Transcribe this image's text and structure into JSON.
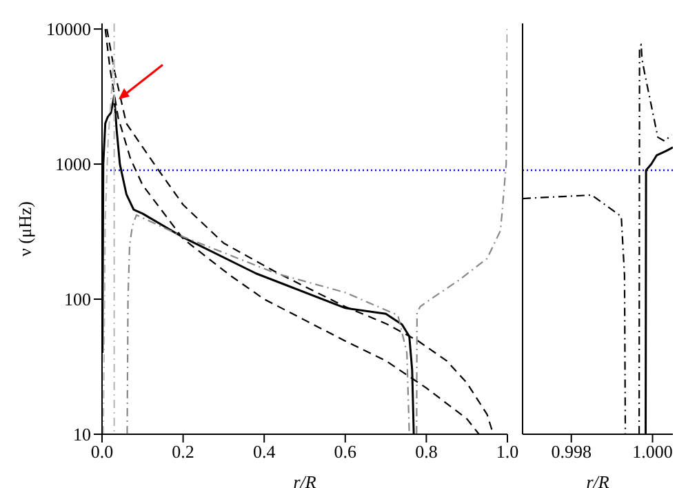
{
  "chart_data": [
    {
      "type": "line",
      "xlabel": "r/R",
      "ylabel": "ν (μHz)",
      "log": "y",
      "xlim": [
        0,
        1
      ],
      "xticks": [
        {
          "value": 0,
          "label": "0.0"
        },
        {
          "value": 0.2,
          "label": "0.2"
        },
        {
          "value": 0.4,
          "label": "0.4"
        },
        {
          "value": 0.6,
          "label": "0.6"
        },
        {
          "value": 0.8,
          "label": "0.8"
        },
        {
          "value": 1,
          "label": "1.0"
        }
      ],
      "ylim": [
        10,
        11000
      ],
      "yticks": [
        10,
        100,
        1000,
        10000
      ],
      "ref_lines": [
        {
          "axis": "y",
          "value": 900,
          "color": "#0000ff",
          "line_style": "dotted"
        }
      ],
      "series": [
        {
          "color": "#000000",
          "line_style": "solid",
          "x": [
            0.001,
            0.003,
            0.008,
            0.014,
            0.022,
            0.03,
            0.036,
            0.044,
            0.06,
            0.078,
            0.1,
            0.2,
            0.38,
            0.6,
            0.7,
            0.74,
            0.758,
            0.765,
            0.769
          ],
          "values": [
            40,
            1000,
            2000,
            2230,
            2400,
            3200,
            1800,
            1000,
            600,
            460,
            430,
            287,
            155,
            86,
            78,
            65,
            53,
            30,
            10
          ]
        },
        {
          "color": "#000000",
          "line_style": "dashed",
          "x": [
            0.008,
            0.02,
            0.04,
            0.07,
            0.1,
            0.2,
            0.316,
            0.4,
            0.5,
            0.6,
            0.7,
            0.8,
            0.9,
            0.93
          ],
          "values": [
            10000,
            5000,
            2200,
            1100,
            700,
            280,
            150,
            100,
            70,
            49,
            35,
            22,
            13,
            10
          ]
        },
        {
          "color": "#000000",
          "line_style": "dashed",
          "x": [
            0.012,
            0.03,
            0.06,
            0.129,
            0.2,
            0.3,
            0.43,
            0.6,
            0.7,
            0.78,
            0.85,
            0.9,
            0.95,
            0.965
          ],
          "values": [
            10000,
            5000,
            2000,
            1000,
            500,
            260,
            158,
            88,
            66,
            49,
            35,
            24,
            14,
            10
          ]
        },
        {
          "color": "#bbbbbb",
          "line_style": "dashdot",
          "x": [
            0.003,
            0.008,
            0.015,
            0.025,
            0.028,
            0.029,
            0.03,
            0.0301
          ],
          "values": [
            10,
            400,
            1500,
            4000,
            6000,
            null,
            11000,
            10
          ]
        },
        {
          "color": "#888888",
          "line_style": "dashdot",
          "x": [
            0.062,
            0.064,
            0.068,
            0.075,
            0.085,
            0.1,
            0.2,
            0.43,
            0.6,
            0.73,
            0.752,
            0.758,
            0.767,
            0.776,
            0.777,
            0.785,
            0.8,
            0.88,
            0.95,
            0.983,
            0.997,
            1.0
          ],
          "values": [
            10,
            100,
            250,
            350,
            420,
            400,
            290,
            155,
            112,
            76,
            40,
            10,
            null,
            10,
            80,
            88,
            95,
            138,
            200,
            322,
            1000,
            10000
          ]
        }
      ]
    },
    {
      "type": "line",
      "xlabel": "r/R",
      "log": "y",
      "tick_labels": "x",
      "xlim": [
        0.9968,
        1.0005
      ],
      "xticks": [
        {
          "value": 0.998,
          "label": "0.998"
        },
        {
          "value": 1.0,
          "label": "1.000"
        }
      ],
      "ylim": [
        10,
        11000
      ],
      "yticks": [
        10,
        100,
        1000,
        10000
      ],
      "ref_lines": [
        {
          "axis": "y",
          "value": 900,
          "color": "#0000ff",
          "line_style": "dotted"
        }
      ],
      "series": [
        {
          "color": "#000000",
          "line_style": "dashdot",
          "x": [
            0.9968,
            0.9985,
            0.99923,
            0.99931,
            0.99933
          ],
          "values": [
            556,
            590,
            410,
            150,
            10
          ]
        },
        {
          "color": "#000000",
          "line_style": "dashdot",
          "x": [
            0.99967,
            0.99968,
            0.99972,
            0.99974,
            0.9998,
            1.00013,
            1.0003,
            1.00047
          ],
          "values": [
            10,
            7000,
            7700,
            6000,
            4800,
            1580,
            1480,
            1650
          ]
        },
        {
          "color": "#000000",
          "line_style": "solid",
          "x": [
            0.99983,
            0.99984,
            0.99997,
            1.0001,
            1.00033,
            1.0005
          ],
          "values": [
            10,
            900,
            1000,
            1160,
            1250,
            1330
          ]
        }
      ]
    }
  ]
}
